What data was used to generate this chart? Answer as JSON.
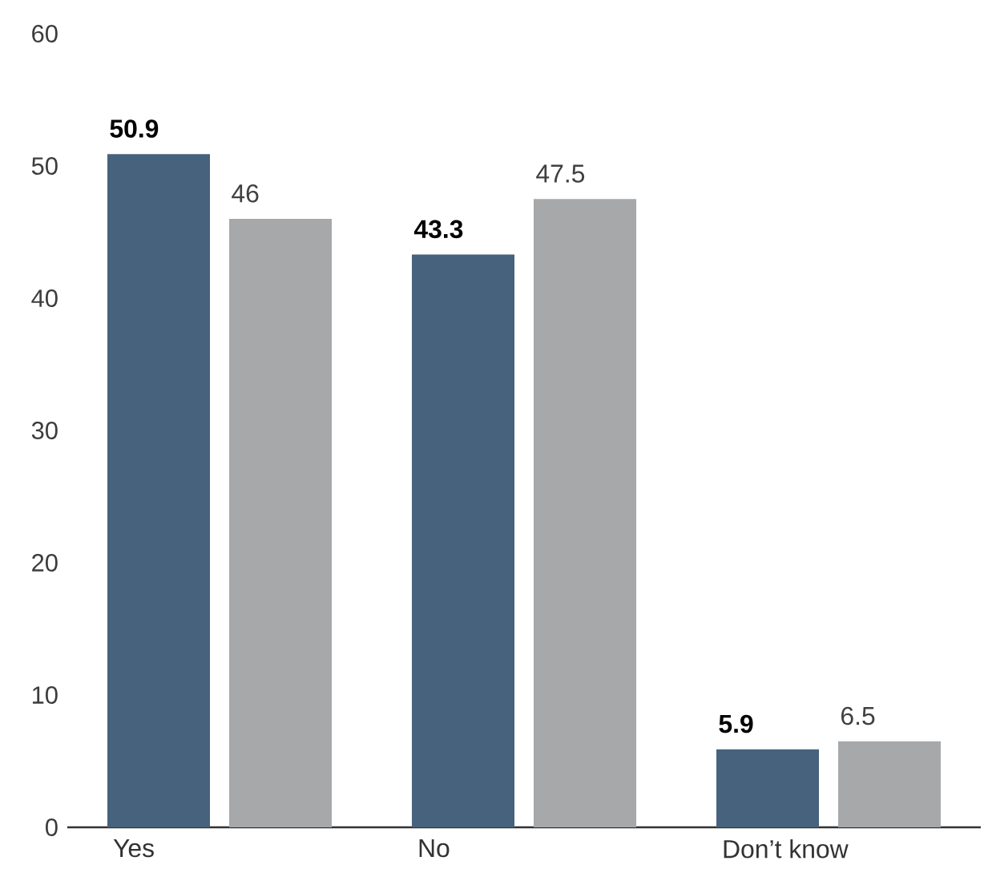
{
  "chart_data": {
    "type": "bar",
    "categories": [
      "Yes",
      "No",
      "Don’t know"
    ],
    "series": [
      {
        "color": "#46627c",
        "values": [
          50.9,
          43.3,
          5.9
        ]
      },
      {
        "color": "#a7a8aa",
        "values": [
          46,
          47.5,
          6.5
        ]
      }
    ],
    "ylim": [
      0,
      60
    ],
    "yticks": [
      0,
      10,
      20,
      30,
      40,
      50,
      60
    ],
    "data_labels": true
  }
}
